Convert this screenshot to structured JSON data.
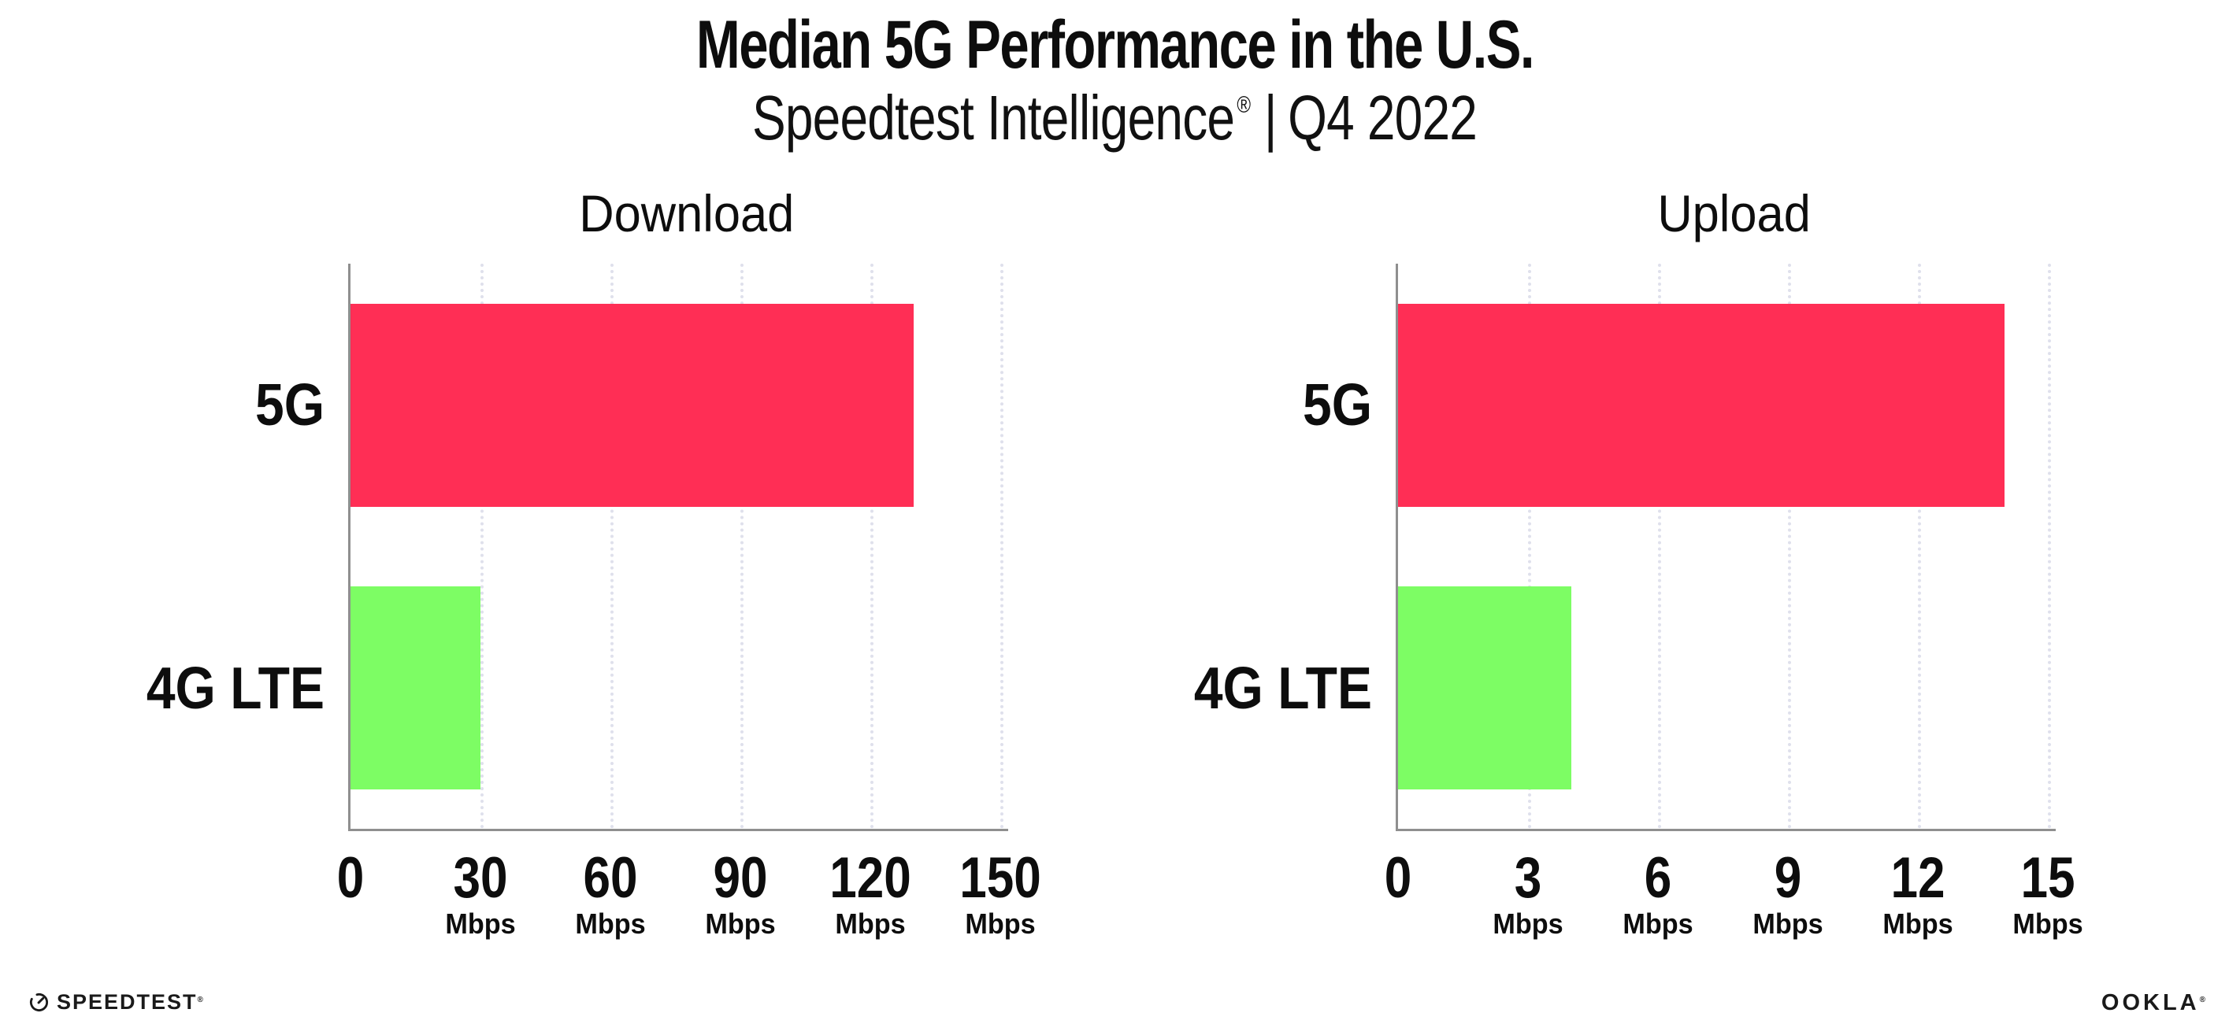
{
  "header": {
    "title": "Median 5G Performance in the U.S.",
    "subtitle": {
      "brand": "Speedtest Intelligence",
      "reg": "®",
      "sep": "|",
      "period": "Q4 2022"
    }
  },
  "chart_data": [
    {
      "type": "bar",
      "orientation": "horizontal",
      "title": "Download",
      "categories": [
        "5G",
        "4G LTE"
      ],
      "values": [
        130,
        30
      ],
      "unit": "Mbps",
      "xlim": [
        0,
        150
      ],
      "xticks": [
        0,
        30,
        60,
        90,
        120,
        150
      ],
      "tick_unit": "Mbps",
      "colors": [
        "#ff2e55",
        "#7dfd64"
      ],
      "grid": "dotted-vertical",
      "legend": "none"
    },
    {
      "type": "bar",
      "orientation": "horizontal",
      "title": "Upload",
      "categories": [
        "5G",
        "4G LTE"
      ],
      "values": [
        14,
        4
      ],
      "unit": "Mbps",
      "xlim": [
        0,
        15
      ],
      "xticks": [
        0,
        3,
        6,
        9,
        12,
        15
      ],
      "tick_unit": "Mbps",
      "colors": [
        "#ff2e55",
        "#7dfd64"
      ],
      "grid": "dotted-vertical",
      "legend": "none"
    }
  ],
  "footer": {
    "speedtest_label": "SPEEDTEST",
    "speedtest_reg": "®",
    "ookla_label": "OOKLA",
    "ookla_reg": "®"
  },
  "colors": {
    "bar_5g": "#ff2e55",
    "bar_4g_lte": "#7dfd64",
    "axis": "#8f8f8f",
    "gridline": "#dfe0ec",
    "text": "#0d0d0d",
    "background": "#ffffff"
  }
}
